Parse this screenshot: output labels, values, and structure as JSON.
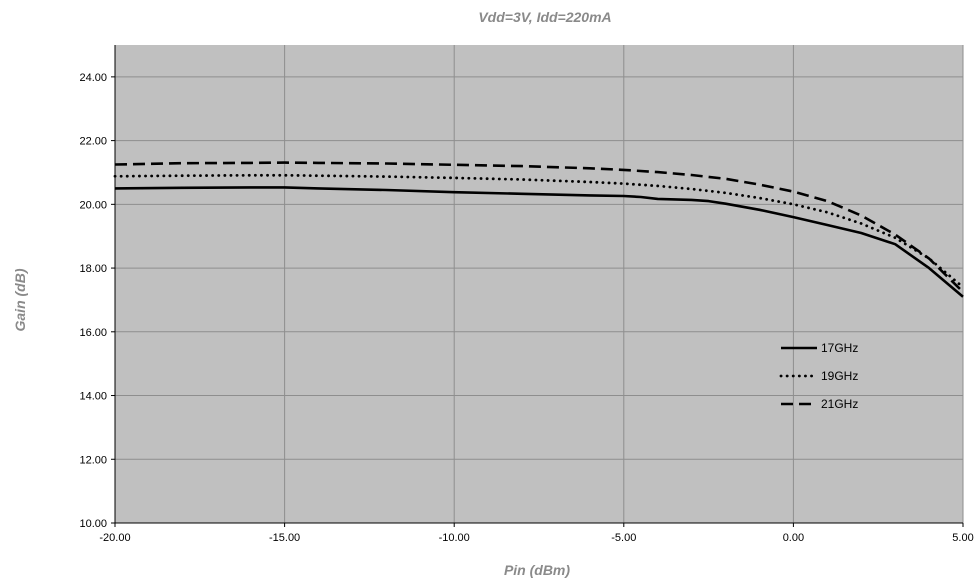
{
  "chart_data": {
    "type": "line",
    "title": "Vdd=3V, Idd=220mA",
    "xlabel": "Pin (dBm)",
    "ylabel": "Gain (dB)",
    "xlim": [
      -20,
      5
    ],
    "ylim": [
      10,
      25
    ],
    "xticks": [
      "-20.00",
      "-15.00",
      "-10.00",
      "-5.00",
      "0.00",
      "5.00"
    ],
    "yticks": [
      "10.00",
      "12.00",
      "14.00",
      "16.00",
      "18.00",
      "20.00",
      "22.00",
      "24.00"
    ],
    "grid": true,
    "legend_position": "lower-right",
    "plot_background": "#c0c0c0",
    "series": [
      {
        "name": "17GHz",
        "style": "solid",
        "x": [
          -20,
          -18,
          -16,
          -15,
          -14,
          -12,
          -10,
          -8,
          -6,
          -5,
          -4.5,
          -4,
          -3,
          -2.5,
          -2,
          -1,
          0,
          1,
          2,
          3,
          4,
          5
        ],
        "y": [
          20.5,
          20.52,
          20.53,
          20.53,
          20.5,
          20.45,
          20.38,
          20.33,
          20.28,
          20.26,
          20.23,
          20.17,
          20.14,
          20.1,
          20.02,
          19.83,
          19.6,
          19.35,
          19.1,
          18.75,
          18.0,
          17.1
        ]
      },
      {
        "name": "19GHz",
        "style": "dotted",
        "x": [
          -20,
          -18,
          -16,
          -15,
          -14,
          -12,
          -10,
          -8,
          -6,
          -5,
          -4,
          -3,
          -2,
          -1,
          0,
          1,
          2,
          3,
          4,
          5
        ],
        "y": [
          20.88,
          20.9,
          20.91,
          20.91,
          20.9,
          20.87,
          20.83,
          20.78,
          20.7,
          20.65,
          20.58,
          20.48,
          20.36,
          20.2,
          20.0,
          19.75,
          19.4,
          18.95,
          18.3,
          17.4
        ]
      },
      {
        "name": "21GHz",
        "style": "dashed",
        "x": [
          -20,
          -18,
          -16,
          -15,
          -14,
          -12,
          -10,
          -8,
          -6,
          -5,
          -4,
          -3,
          -2,
          -1,
          0,
          1,
          2,
          3,
          4,
          5
        ],
        "y": [
          21.25,
          21.29,
          21.3,
          21.31,
          21.3,
          21.28,
          21.24,
          21.2,
          21.13,
          21.08,
          21.01,
          20.92,
          20.8,
          20.62,
          20.4,
          20.1,
          19.65,
          19.05,
          18.3,
          17.25
        ]
      }
    ]
  }
}
